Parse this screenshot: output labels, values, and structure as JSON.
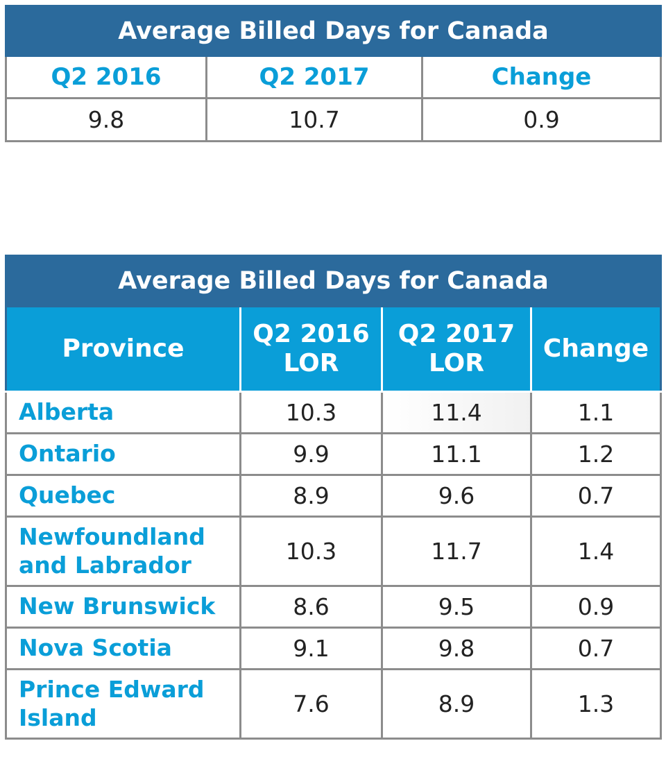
{
  "table1": {
    "title": "Average Billed Days for Canada",
    "headers": [
      "Q2 2016",
      "Q2 2017",
      "Change"
    ],
    "values": [
      "9.8",
      "10.7",
      "0.9"
    ]
  },
  "table2": {
    "title": "Average Billed Days for Canada",
    "headers": [
      "Province",
      "Q2 2016 LOR",
      "Q2 2017 LOR",
      "Change"
    ],
    "rows": [
      {
        "province": "Alberta",
        "q2_2016": "10.3",
        "q2_2017": "11.4",
        "change": "1.1"
      },
      {
        "province": "Ontario",
        "q2_2016": "9.9",
        "q2_2017": "11.1",
        "change": "1.2"
      },
      {
        "province": "Quebec",
        "q2_2016": "8.9",
        "q2_2017": "9.6",
        "change": "0.7"
      },
      {
        "province": "Newfoundland and Labrador",
        "q2_2016": "10.3",
        "q2_2017": "11.7",
        "change": "1.4"
      },
      {
        "province": "New Brunswick",
        "q2_2016": "8.6",
        "q2_2017": "9.5",
        "change": "0.9"
      },
      {
        "province": "Nova Scotia",
        "q2_2016": "9.1",
        "q2_2017": "9.8",
        "change": "0.7"
      },
      {
        "province": "Prince Edward Island",
        "q2_2016": "7.6",
        "q2_2017": "8.9",
        "change": "1.3"
      }
    ]
  }
}
